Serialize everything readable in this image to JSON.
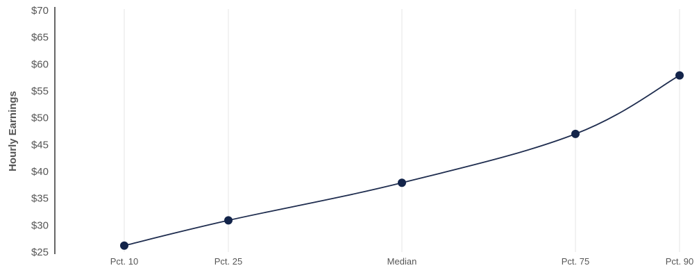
{
  "chart_data": {
    "type": "line",
    "categories": [
      "Pct. 10",
      "Pct. 25",
      "Median",
      "Pct. 75",
      "Pct. 90"
    ],
    "category_positions": [
      10,
      25,
      50,
      75,
      90
    ],
    "series": [
      {
        "values": [
          26.2,
          30.9,
          37.9,
          47.0,
          57.9
        ]
      }
    ],
    "ylabel": "Hourly Earnings",
    "xlabel": "",
    "ylim": [
      25,
      70
    ],
    "yticks": [
      25,
      30,
      35,
      40,
      45,
      50,
      55,
      60,
      65,
      70
    ],
    "ytick_labels": [
      "$25",
      "$30",
      "$35",
      "$40",
      "$45",
      "$50",
      "$55",
      "$60",
      "$65",
      "$70"
    ],
    "grid": "vertical",
    "line_color": "#1f2d4f",
    "marker_color": "#13244a",
    "grid_color": "#e6e6e6"
  }
}
